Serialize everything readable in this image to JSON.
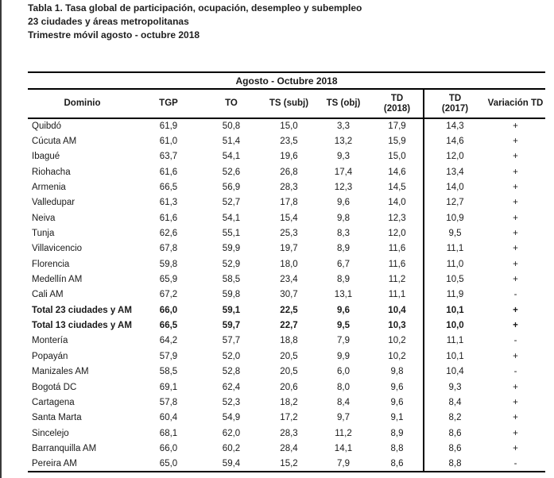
{
  "title": {
    "line1": "Tabla 1. Tasa global de participación, ocupación, desempleo y subempleo",
    "line2": "23 ciudades y áreas metropolitanas",
    "line3": "Trimestre móvil agosto - octubre 2018"
  },
  "table": {
    "period_header": "Agosto - Octubre 2018",
    "columns": [
      {
        "label": "Dominio"
      },
      {
        "label": "TGP"
      },
      {
        "label": "TO"
      },
      {
        "label": "TS (subj)"
      },
      {
        "label": "TS (obj)"
      },
      {
        "label": "TD",
        "sub": "(2018)"
      },
      {
        "label": "TD",
        "sub": "(2017)"
      },
      {
        "label": "Variación TD"
      }
    ],
    "rows": [
      {
        "bold": false,
        "cells": [
          "Quibdó",
          "61,9",
          "50,8",
          "15,0",
          "3,3",
          "17,9",
          "14,3",
          "+"
        ]
      },
      {
        "bold": false,
        "cells": [
          "Cúcuta AM",
          "61,0",
          "51,4",
          "23,5",
          "13,2",
          "15,9",
          "14,6",
          "+"
        ]
      },
      {
        "bold": false,
        "cells": [
          "Ibagué",
          "63,7",
          "54,1",
          "19,6",
          "9,3",
          "15,0",
          "12,0",
          "+"
        ]
      },
      {
        "bold": false,
        "cells": [
          "Riohacha",
          "61,6",
          "52,6",
          "26,8",
          "17,4",
          "14,6",
          "13,4",
          "+"
        ]
      },
      {
        "bold": false,
        "cells": [
          "Armenia",
          "66,5",
          "56,9",
          "28,3",
          "12,3",
          "14,5",
          "14,0",
          "+"
        ]
      },
      {
        "bold": false,
        "cells": [
          "Valledupar",
          "61,3",
          "52,7",
          "17,8",
          "9,6",
          "14,0",
          "12,7",
          "+"
        ]
      },
      {
        "bold": false,
        "cells": [
          "Neiva",
          "61,6",
          "54,1",
          "15,4",
          "9,8",
          "12,3",
          "10,9",
          "+"
        ]
      },
      {
        "bold": false,
        "cells": [
          "Tunja",
          "62,6",
          "55,1",
          "25,3",
          "8,3",
          "12,0",
          "9,5",
          "+"
        ]
      },
      {
        "bold": false,
        "cells": [
          "Villavicencio",
          "67,8",
          "59,9",
          "19,7",
          "8,9",
          "11,6",
          "11,1",
          "+"
        ]
      },
      {
        "bold": false,
        "cells": [
          "Florencia",
          "59,8",
          "52,9",
          "18,0",
          "6,7",
          "11,6",
          "11,0",
          "+"
        ]
      },
      {
        "bold": false,
        "cells": [
          "Medellín AM",
          "65,9",
          "58,5",
          "23,4",
          "8,9",
          "11,2",
          "10,5",
          "+"
        ]
      },
      {
        "bold": false,
        "cells": [
          "Cali AM",
          "67,2",
          "59,8",
          "30,7",
          "13,1",
          "11,1",
          "11,9",
          "-"
        ]
      },
      {
        "bold": true,
        "cells": [
          "Total 23 ciudades y AM",
          "66,0",
          "59,1",
          "22,5",
          "9,6",
          "10,4",
          "10,1",
          "+"
        ]
      },
      {
        "bold": true,
        "cells": [
          "Total 13 ciudades y AM",
          "66,5",
          "59,7",
          "22,7",
          "9,5",
          "10,3",
          "10,0",
          "+"
        ]
      },
      {
        "bold": false,
        "cells": [
          "Montería",
          "64,2",
          "57,7",
          "18,8",
          "7,9",
          "10,2",
          "11,1",
          "-"
        ]
      },
      {
        "bold": false,
        "cells": [
          "Popayán",
          "57,9",
          "52,0",
          "20,5",
          "9,9",
          "10,2",
          "10,1",
          "+"
        ]
      },
      {
        "bold": false,
        "cells": [
          "Manizales AM",
          "58,5",
          "52,8",
          "20,5",
          "6,0",
          "9,8",
          "10,4",
          "-"
        ]
      },
      {
        "bold": false,
        "cells": [
          "Bogotá DC",
          "69,1",
          "62,4",
          "20,6",
          "8,0",
          "9,6",
          "9,3",
          "+"
        ]
      },
      {
        "bold": false,
        "cells": [
          "Cartagena",
          "57,8",
          "52,3",
          "18,2",
          "8,4",
          "9,6",
          "8,4",
          "+"
        ]
      },
      {
        "bold": false,
        "cells": [
          "Santa Marta",
          "60,4",
          "54,9",
          "17,2",
          "9,7",
          "9,1",
          "8,2",
          "+"
        ]
      },
      {
        "bold": false,
        "cells": [
          "Sincelejo",
          "68,1",
          "62,0",
          "28,3",
          "11,2",
          "8,9",
          "8,6",
          "+"
        ]
      },
      {
        "bold": false,
        "cells": [
          "Barranquilla AM",
          "66,0",
          "60,2",
          "28,4",
          "14,1",
          "8,8",
          "8,6",
          "+"
        ]
      },
      {
        "bold": false,
        "cells": [
          "Pereira AM",
          "65,0",
          "59,4",
          "15,2",
          "7,9",
          "8,6",
          "8,8",
          "-"
        ]
      }
    ]
  }
}
